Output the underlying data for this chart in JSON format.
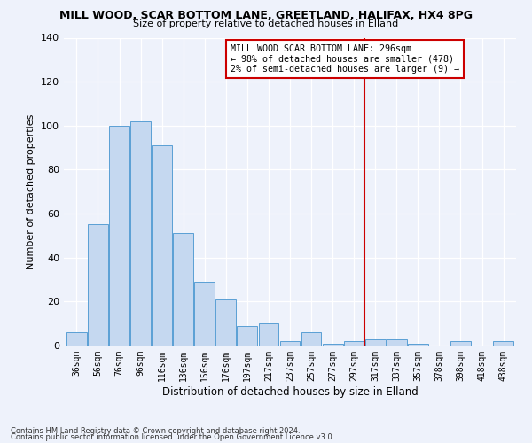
{
  "title": "MILL WOOD, SCAR BOTTOM LANE, GREETLAND, HALIFAX, HX4 8PG",
  "subtitle": "Size of property relative to detached houses in Elland",
  "xlabel": "Distribution of detached houses by size in Elland",
  "ylabel": "Number of detached properties",
  "bar_values": [
    6,
    55,
    100,
    102,
    91,
    51,
    29,
    21,
    9,
    10,
    2,
    6,
    1,
    2,
    3,
    3,
    1,
    0,
    2,
    0,
    2
  ],
  "x_labels": [
    "36sqm",
    "56sqm",
    "76sqm",
    "96sqm",
    "116sqm",
    "136sqm",
    "156sqm",
    "176sqm",
    "197sqm",
    "217sqm",
    "237sqm",
    "257sqm",
    "277sqm",
    "297sqm",
    "317sqm",
    "337sqm",
    "357sqm",
    "378sqm",
    "398sqm",
    "418sqm",
    "438sqm"
  ],
  "bar_color": "#c5d8f0",
  "bar_edge_color": "#5a9fd4",
  "vline_color": "#cc0000",
  "annotation_title": "MILL WOOD SCAR BOTTOM LANE: 296sqm",
  "annotation_line1": "← 98% of detached houses are smaller (478)",
  "annotation_line2": "2% of semi-detached houses are larger (9) →",
  "ylim": [
    0,
    140
  ],
  "yticks": [
    0,
    20,
    40,
    60,
    80,
    100,
    120,
    140
  ],
  "footer1": "Contains HM Land Registry data © Crown copyright and database right 2024.",
  "footer2": "Contains public sector information licensed under the Open Government Licence v3.0.",
  "bg_color": "#eef2fb"
}
